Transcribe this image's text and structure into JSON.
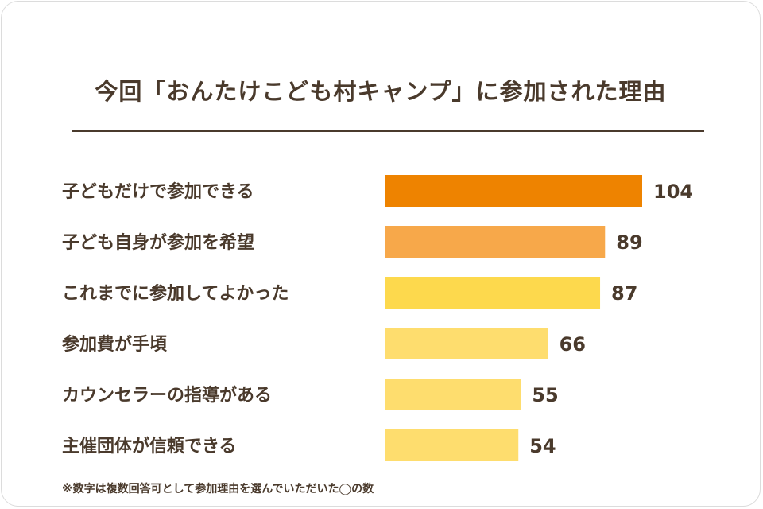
{
  "title": "今回「おんたけこども村キャンプ」に参加された理由",
  "footnote": "※数字は複数回答可として参加理由を選んでいただいた◯の数",
  "colors": {
    "text": "#4a3a2c",
    "bar_top1": "#ee8300",
    "bar_top2": "#f7a84a",
    "bar_top3": "#fdd94d",
    "bar_rest": "#fedd6e",
    "rule": "#4a3a2c"
  },
  "chart_data": {
    "type": "bar",
    "orientation": "horizontal",
    "title": "今回「おんたけこども村キャンプ」に参加された理由",
    "categories": [
      "子どもだけで参加できる",
      "子ども自身が参加を希望",
      "これまでに参加してよかった",
      "参加費が手頃",
      "カウンセラーの指導がある",
      "主催団体が信頼できる"
    ],
    "values": [
      104,
      89,
      87,
      66,
      55,
      54
    ],
    "bar_colors": [
      "#ee8300",
      "#f7a84a",
      "#fdd94d",
      "#fedd6e",
      "#fedd6e",
      "#fedd6e"
    ],
    "xlim": [
      0,
      104
    ],
    "grid": false,
    "legend": "none"
  }
}
